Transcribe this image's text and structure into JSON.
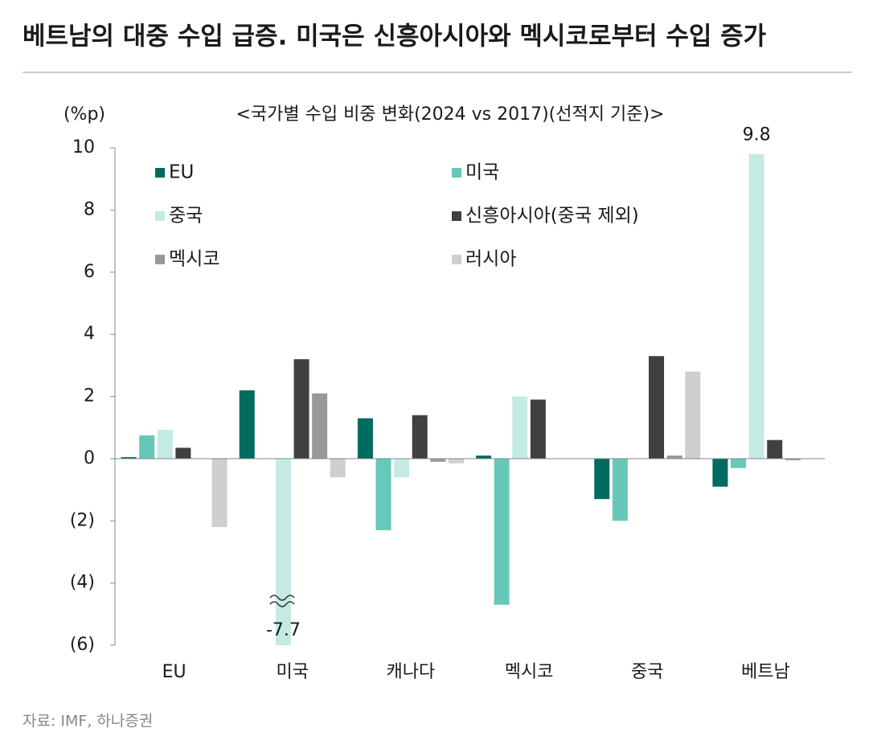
{
  "chart_data": {
    "type": "bar",
    "title": "베트남의 대중 수입 급증. 미국은 신흥아시아와 멕시코로부터 수입 증가",
    "subtitle": "<국가별 수입 비중 변화(2024 vs 2017)(선적지 기준)>",
    "y_label": "(%p)",
    "source": "자료: IMF, 하나증권",
    "categories": [
      "EU",
      "미국",
      "캐나다",
      "멕시코",
      "중국",
      "베트남"
    ],
    "series": [
      {
        "name": "EU",
        "color": "#006b5f",
        "values": [
          0.05,
          2.2,
          1.3,
          0.1,
          -1.3,
          -0.9
        ]
      },
      {
        "name": "미국",
        "color": "#66c8b8",
        "values": [
          0.75,
          null,
          -2.3,
          -4.7,
          -2.0,
          -0.3
        ]
      },
      {
        "name": "중국",
        "color": "#c4ebe3",
        "values": [
          0.93,
          -7.7,
          -0.6,
          2.0,
          null,
          9.8
        ],
        "value_labels": [
          null,
          "-7.7",
          null,
          null,
          null,
          "9.8"
        ]
      },
      {
        "name": "신흥아시아(중국 제외)",
        "color": "#404040",
        "values": [
          0.35,
          3.2,
          1.4,
          1.9,
          3.3,
          0.6
        ]
      },
      {
        "name": "멕시코",
        "color": "#999999",
        "values": [
          0,
          2.1,
          -0.1,
          null,
          0.1,
          -0.05
        ]
      },
      {
        "name": "러시아",
        "color": "#cfcfcf",
        "values": [
          -2.2,
          -0.6,
          -0.15,
          0,
          2.8,
          null
        ]
      }
    ],
    "ylim": [
      -6,
      10
    ],
    "yticks": [
      {
        "value": -6,
        "label": "(6)"
      },
      {
        "value": -4,
        "label": "(4)"
      },
      {
        "value": -2,
        "label": "(2)"
      },
      0,
      2,
      4,
      6,
      8,
      10
    ],
    "grid": false
  }
}
